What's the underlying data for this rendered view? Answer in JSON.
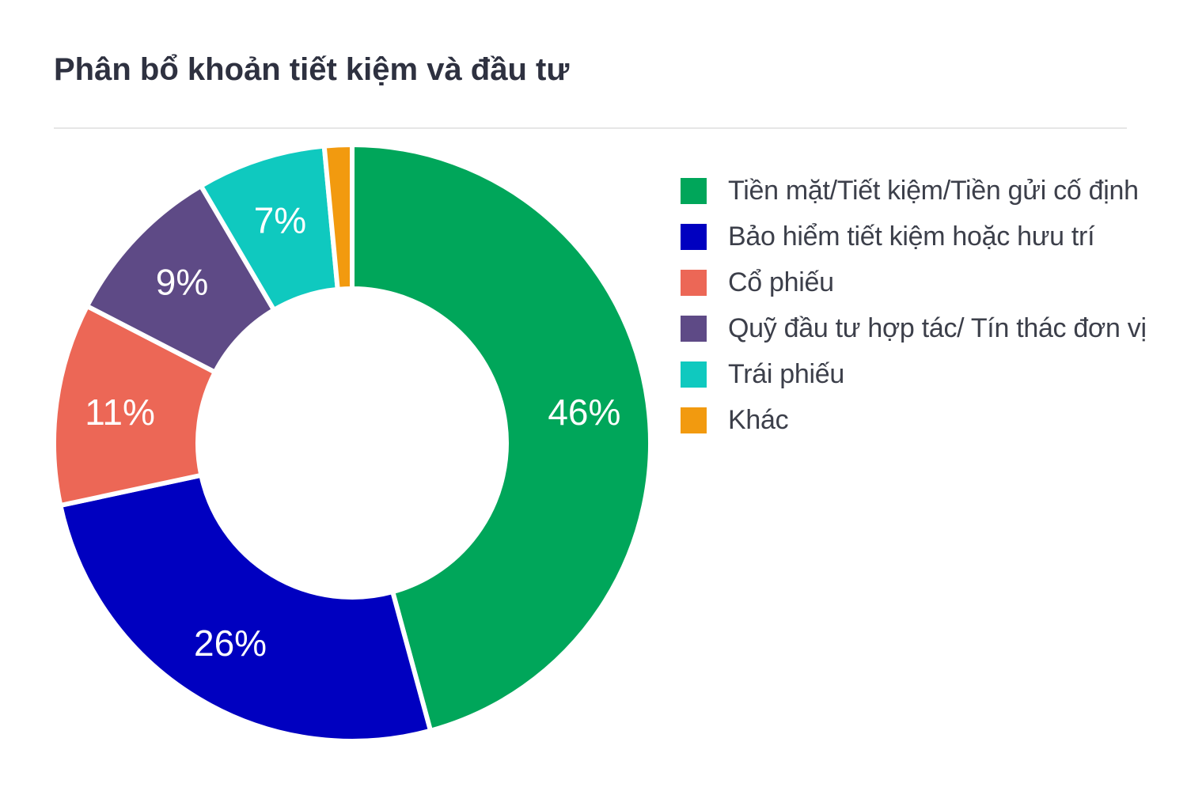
{
  "title": "Phân bổ khoản tiết kiệm và đầu tư",
  "chart_data": {
    "type": "pie",
    "variant": "donut",
    "title": "Phân bổ khoản tiết kiệm và đầu tư",
    "legend_position": "right",
    "categories": [
      "Tiền mặt/Tiết kiệm/Tiền gửi cố định",
      "Bảo hiểm tiết kiệm hoặc hưu trí",
      "Cổ phiếu",
      "Quỹ đầu tư hợp tác/ Tín thác đơn vị",
      "Trái phiếu",
      "Khác"
    ],
    "values": [
      46,
      26,
      11,
      9,
      7,
      1.5
    ],
    "data_labels": [
      "46%",
      "26%",
      "11%",
      "9%",
      "7%",
      ""
    ],
    "colors": [
      "#00a65a",
      "#0000c0",
      "#ec6756",
      "#5e4a86",
      "#0fc9bf",
      "#f29a0f"
    ]
  }
}
